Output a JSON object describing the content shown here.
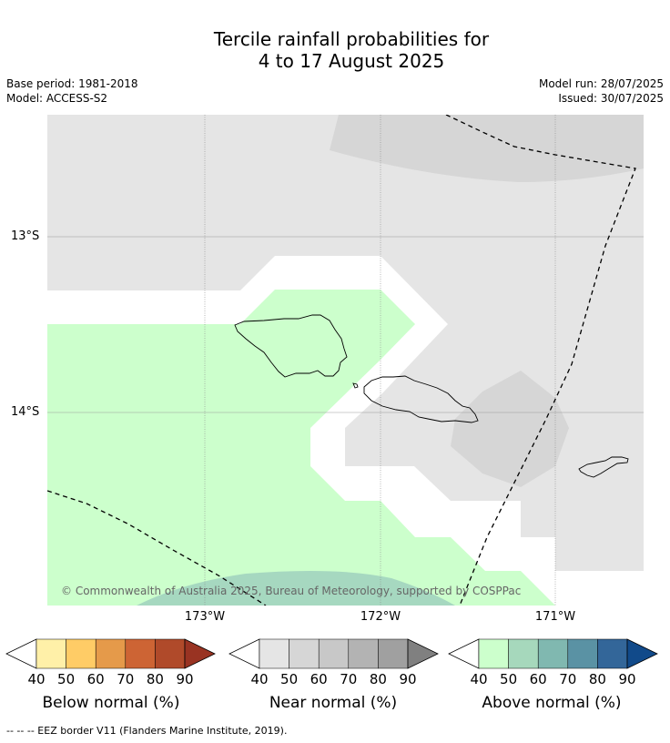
{
  "title": {
    "line1": "Tercile rainfall probabilities for",
    "line2": "4 to 17 August 2025"
  },
  "meta": {
    "base_period": "Base period: 1981-2018",
    "model": "Model: ACCESS-S2",
    "model_run": "Model run: 28/07/2025",
    "issued": "Issued: 30/07/2025"
  },
  "map": {
    "lat_labels": [
      "13°S",
      "14°S"
    ],
    "lon_labels": [
      "173°W",
      "172°W",
      "171°W"
    ],
    "copyright": "© Commonwealth of Australia 2025, Bureau of Meteorology, supported by COSPPac",
    "colors": {
      "background_gray": "#e5e5e5",
      "near_normal_50": "#d6d6d6",
      "above_normal_40": "#ccffcc",
      "above_normal_50": "#a6d8c0",
      "ocean_white": "#ffffff",
      "eez_line": "#000000"
    }
  },
  "legends": [
    {
      "label": "Below normal (%)",
      "ticks": [
        "40",
        "50",
        "60",
        "70",
        "80",
        "90"
      ],
      "colors": [
        "#ffffff",
        "#fff0a8",
        "#ffcc66",
        "#e59a4a",
        "#cd6434",
        "#b04a2a",
        "#993322"
      ]
    },
    {
      "label": "Near normal (%)",
      "ticks": [
        "40",
        "50",
        "60",
        "70",
        "80",
        "90"
      ],
      "colors": [
        "#ffffff",
        "#e5e5e5",
        "#d6d6d6",
        "#c8c8c8",
        "#b3b3b3",
        "#a0a0a0",
        "#808080"
      ]
    },
    {
      "label": "Above normal (%)",
      "ticks": [
        "40",
        "50",
        "60",
        "70",
        "80",
        "90"
      ],
      "colors": [
        "#ffffff",
        "#ccffcc",
        "#a6d8bc",
        "#80b8b0",
        "#5a92a4",
        "#336699",
        "#114a8a"
      ]
    }
  ],
  "footnote": "--  --  -- EEZ border V11 (Flanders Marine Institute, 2019)."
}
